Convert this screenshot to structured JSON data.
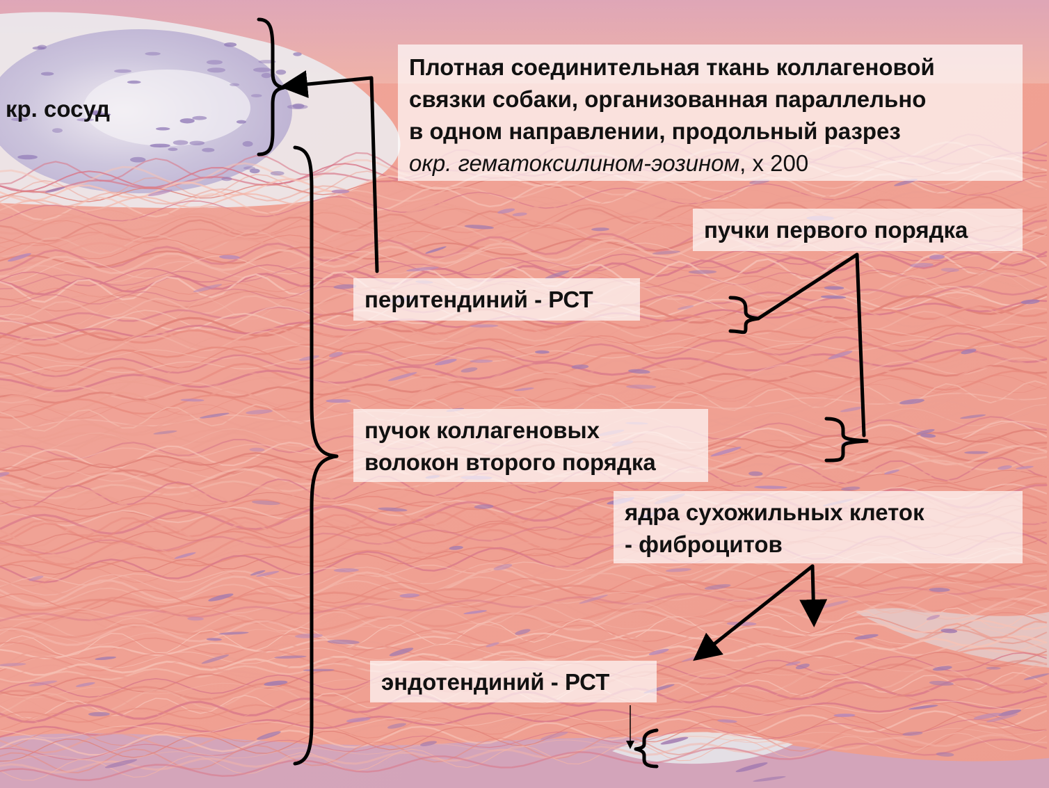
{
  "title": {
    "line1": "Плотная соединительная ткань коллагеновой",
    "line2": "связки собаки, организованная параллельно",
    "line3": "в одном направлении, продольный разрез",
    "stain_italic": "окр. гематоксилином-эозином",
    "magnification": ", х 200"
  },
  "labels": {
    "vessel": "кр. сосуд",
    "first_order_bundles": "пучки первого порядка",
    "peritendineum": "перитендиний - РСТ",
    "second_order_bundle_line1": "пучок коллагеновых",
    "second_order_bundle_line2": "волокон второго порядка",
    "fibrocyte_nuclei_line1": "ядра сухожильных клеток",
    "fibrocyte_nuclei_line2": "- фиброцитов",
    "endotendineum": "эндотендиний - РСТ"
  }
}
